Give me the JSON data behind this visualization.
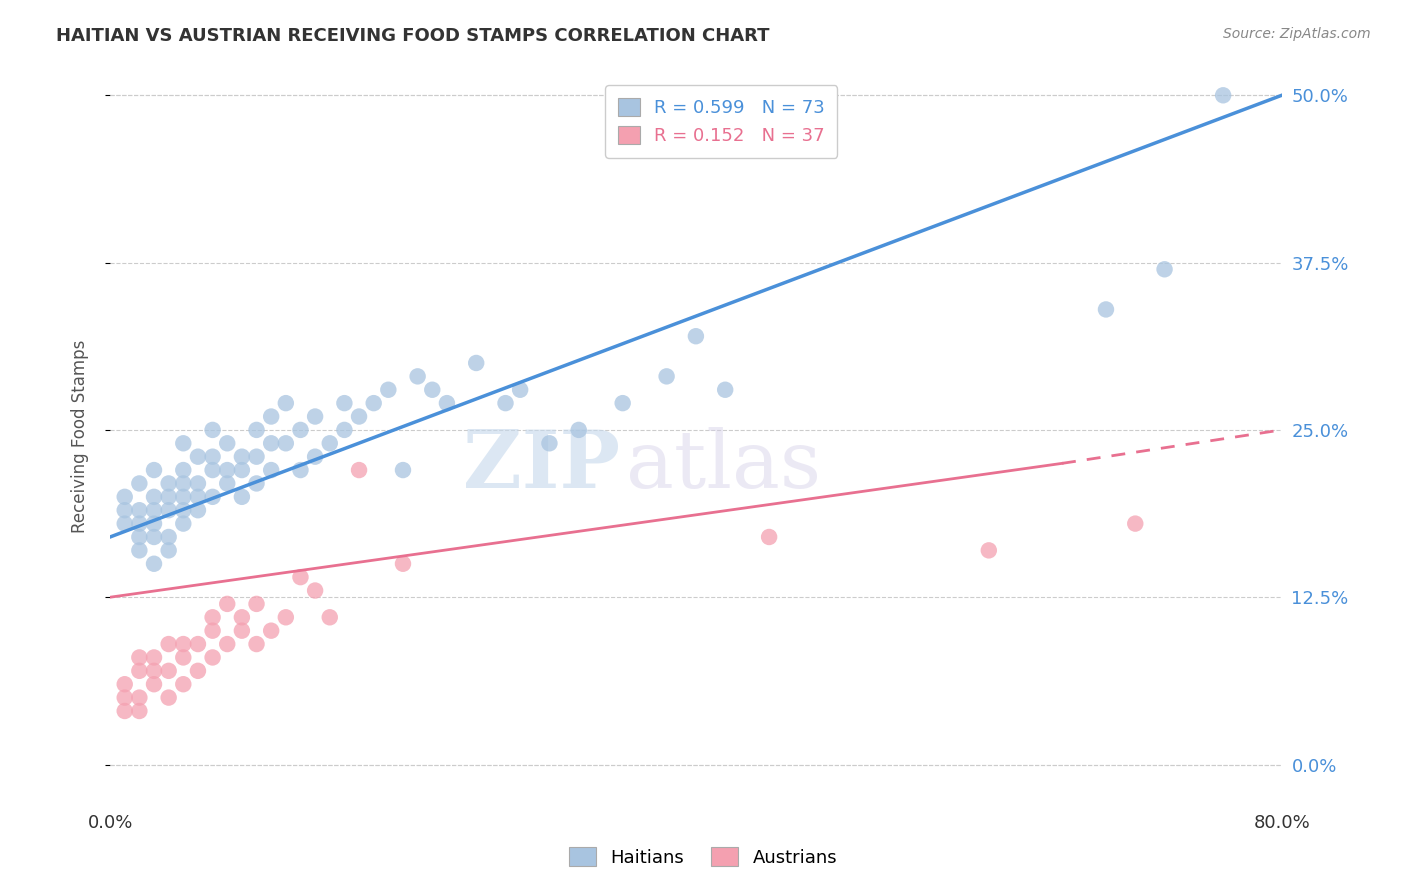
{
  "title": "HAITIAN VS AUSTRIAN RECEIVING FOOD STAMPS CORRELATION CHART",
  "source": "Source: ZipAtlas.com",
  "ylabel": "Receiving Food Stamps",
  "xlim": [
    0.0,
    80.0
  ],
  "ylim": [
    -3.0,
    52.0
  ],
  "yticks": [
    0.0,
    12.5,
    25.0,
    37.5,
    50.0
  ],
  "ytick_labels": [
    "0.0%",
    "12.5%",
    "25.0%",
    "37.5%",
    "50.0%"
  ],
  "haitian_color": "#a8c4e0",
  "austrian_color": "#f4a0b0",
  "haitian_line_color": "#4a90d9",
  "austrian_line_color": "#e87090",
  "R_haitian": 0.599,
  "N_haitian": 73,
  "R_austrian": 0.152,
  "N_austrian": 37,
  "watermark_zip": "ZIP",
  "watermark_atlas": "atlas",
  "haitian_line_x0": 0.0,
  "haitian_line_y0": 17.0,
  "haitian_line_x1": 80.0,
  "haitian_line_y1": 50.0,
  "austrian_line_x0": 0.0,
  "austrian_line_y0": 12.5,
  "austrian_line_x1": 65.0,
  "austrian_line_y1": 22.5,
  "austrian_dash_x0": 65.0,
  "austrian_dash_y0": 22.5,
  "austrian_dash_x1": 80.0,
  "austrian_dash_y1": 25.0,
  "haitian_scatter_x": [
    1,
    1,
    1,
    2,
    2,
    2,
    2,
    2,
    3,
    3,
    3,
    3,
    3,
    3,
    4,
    4,
    4,
    4,
    4,
    5,
    5,
    5,
    5,
    5,
    5,
    6,
    6,
    6,
    6,
    7,
    7,
    7,
    7,
    8,
    8,
    8,
    9,
    9,
    9,
    10,
    10,
    10,
    11,
    11,
    11,
    12,
    12,
    13,
    13,
    14,
    14,
    15,
    16,
    16,
    17,
    18,
    19,
    20,
    21,
    22,
    23,
    25,
    27,
    28,
    30,
    32,
    35,
    38,
    40,
    42,
    68,
    72,
    76
  ],
  "haitian_scatter_y": [
    18,
    19,
    20,
    16,
    17,
    18,
    19,
    21,
    15,
    17,
    18,
    19,
    20,
    22,
    16,
    17,
    19,
    20,
    21,
    18,
    19,
    20,
    21,
    22,
    24,
    19,
    20,
    21,
    23,
    20,
    22,
    23,
    25,
    21,
    22,
    24,
    20,
    22,
    23,
    21,
    23,
    25,
    22,
    24,
    26,
    24,
    27,
    22,
    25,
    23,
    26,
    24,
    25,
    27,
    26,
    27,
    28,
    22,
    29,
    28,
    27,
    30,
    27,
    28,
    24,
    25,
    27,
    29,
    32,
    28,
    34,
    37,
    50
  ],
  "austrian_scatter_x": [
    1,
    1,
    1,
    2,
    2,
    2,
    2,
    3,
    3,
    3,
    4,
    4,
    4,
    5,
    5,
    5,
    6,
    6,
    7,
    7,
    7,
    8,
    8,
    9,
    9,
    10,
    10,
    11,
    12,
    13,
    14,
    15,
    17,
    20,
    45,
    60,
    70
  ],
  "austrian_scatter_y": [
    4,
    5,
    6,
    4,
    5,
    7,
    8,
    6,
    7,
    8,
    5,
    7,
    9,
    6,
    8,
    9,
    7,
    9,
    8,
    10,
    11,
    9,
    12,
    10,
    11,
    9,
    12,
    10,
    11,
    14,
    13,
    11,
    22,
    15,
    17,
    16,
    18
  ]
}
